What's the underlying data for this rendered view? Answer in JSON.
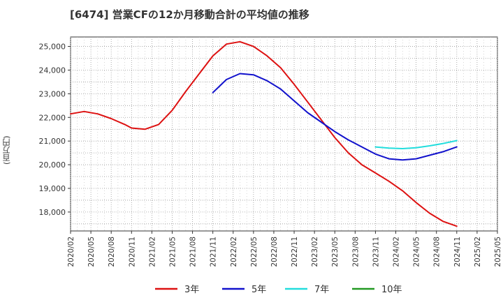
{
  "title": "[6474]  営業CFの12か月移動合計の平均値の推移",
  "chart_data": {
    "type": "line",
    "ylabel": "(百万円)",
    "ylim": [
      17200,
      25400
    ],
    "yticks": [
      18000,
      19000,
      20000,
      21000,
      22000,
      23000,
      24000,
      25000
    ],
    "ytick_labels": [
      "18,000",
      "19,000",
      "20,000",
      "21,000",
      "22,000",
      "23,000",
      "24,000",
      "25,000"
    ],
    "xticks": [
      "2020/02",
      "2020/05",
      "2020/08",
      "2020/11",
      "2021/02",
      "2021/05",
      "2021/08",
      "2021/11",
      "2022/02",
      "2022/05",
      "2022/08",
      "2022/11",
      "2023/02",
      "2023/05",
      "2023/08",
      "2023/11",
      "2024/02",
      "2024/05",
      "2024/08",
      "2024/11",
      "2025/02",
      "2025/05"
    ],
    "grid": true,
    "legend_position": "bottom",
    "series": [
      {
        "name": "3年",
        "color": "#dd1111",
        "x": [
          "2020/02",
          "2020/04",
          "2020/06",
          "2020/08",
          "2020/10",
          "2020/11",
          "2021/01",
          "2021/03",
          "2021/05",
          "2021/07",
          "2021/09",
          "2021/11",
          "2022/01",
          "2022/03",
          "2022/05",
          "2022/07",
          "2022/09",
          "2022/11",
          "2023/01",
          "2023/03",
          "2023/05",
          "2023/07",
          "2023/09",
          "2023/11",
          "2024/01",
          "2024/03",
          "2024/05",
          "2024/07",
          "2024/09",
          "2024/11"
        ],
        "values": [
          22150,
          22250,
          22150,
          21950,
          21700,
          21550,
          21500,
          21700,
          22300,
          23100,
          23850,
          24600,
          25100,
          25200,
          25000,
          24600,
          24100,
          23400,
          22650,
          21900,
          21150,
          20500,
          20000,
          19650,
          19300,
          18900,
          18400,
          17950,
          17600,
          17400
        ]
      },
      {
        "name": "5年",
        "color": "#1111cc",
        "x": [
          "2021/11",
          "2022/01",
          "2022/03",
          "2022/05",
          "2022/07",
          "2022/09",
          "2022/11",
          "2023/01",
          "2023/03",
          "2023/05",
          "2023/07",
          "2023/09",
          "2023/11",
          "2024/01",
          "2024/03",
          "2024/05",
          "2024/07",
          "2024/09",
          "2024/11"
        ],
        "values": [
          23050,
          23600,
          23850,
          23800,
          23550,
          23200,
          22700,
          22200,
          21800,
          21400,
          21050,
          20750,
          20450,
          20250,
          20200,
          20250,
          20400,
          20550,
          20750
        ]
      },
      {
        "name": "7年",
        "color": "#22dddd",
        "x": [
          "2023/11",
          "2024/01",
          "2024/03",
          "2024/05",
          "2024/07",
          "2024/09",
          "2024/11"
        ],
        "values": [
          20750,
          20700,
          20680,
          20720,
          20800,
          20900,
          21020
        ]
      },
      {
        "name": "10年",
        "color": "#229922",
        "x": [],
        "values": []
      }
    ]
  }
}
